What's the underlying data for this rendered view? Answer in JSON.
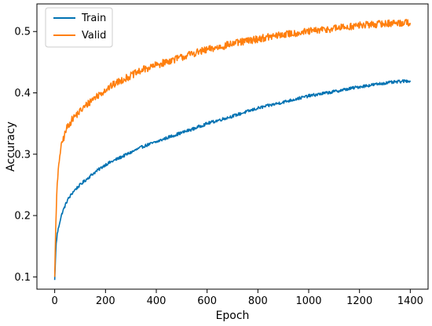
{
  "chart_data": {
    "type": "line",
    "title": "",
    "xlabel": "Epoch",
    "ylabel": "Accuracy",
    "xlim": [
      -70,
      1470
    ],
    "ylim": [
      0.08,
      0.545
    ],
    "xticks": [
      0,
      200,
      400,
      600,
      800,
      1000,
      1200,
      1400
    ],
    "yticks": [
      0.1,
      0.2,
      0.3,
      0.4,
      0.5
    ],
    "xtick_labels": [
      "0",
      "200",
      "400",
      "600",
      "800",
      "1000",
      "1200",
      "1400"
    ],
    "ytick_labels": [
      "0.1",
      "0.2",
      "0.3",
      "0.4",
      "0.5"
    ],
    "grid": false,
    "legend_position": "top-left",
    "series": [
      {
        "name": "Train",
        "color": "#0072b2",
        "x": [
          0,
          5,
          10,
          20,
          30,
          50,
          75,
          100,
          150,
          200,
          250,
          300,
          350,
          400,
          450,
          500,
          550,
          600,
          700,
          800,
          900,
          1000,
          1100,
          1200,
          1300,
          1400
        ],
        "y": [
          0.095,
          0.15,
          0.17,
          0.19,
          0.205,
          0.225,
          0.24,
          0.25,
          0.268,
          0.283,
          0.293,
          0.303,
          0.313,
          0.32,
          0.328,
          0.335,
          0.342,
          0.35,
          0.362,
          0.375,
          0.385,
          0.395,
          0.402,
          0.41,
          0.416,
          0.42
        ]
      },
      {
        "name": "Valid",
        "color": "#ff7f0e",
        "x": [
          0,
          5,
          10,
          20,
          30,
          50,
          75,
          100,
          150,
          200,
          250,
          300,
          350,
          400,
          450,
          500,
          550,
          600,
          700,
          800,
          900,
          1000,
          1100,
          1200,
          1300,
          1400
        ],
        "y": [
          0.1,
          0.2,
          0.25,
          0.3,
          0.32,
          0.345,
          0.36,
          0.37,
          0.39,
          0.405,
          0.418,
          0.428,
          0.438,
          0.445,
          0.452,
          0.458,
          0.465,
          0.47,
          0.48,
          0.488,
          0.495,
          0.5,
          0.505,
          0.51,
          0.513,
          0.515
        ]
      }
    ]
  }
}
